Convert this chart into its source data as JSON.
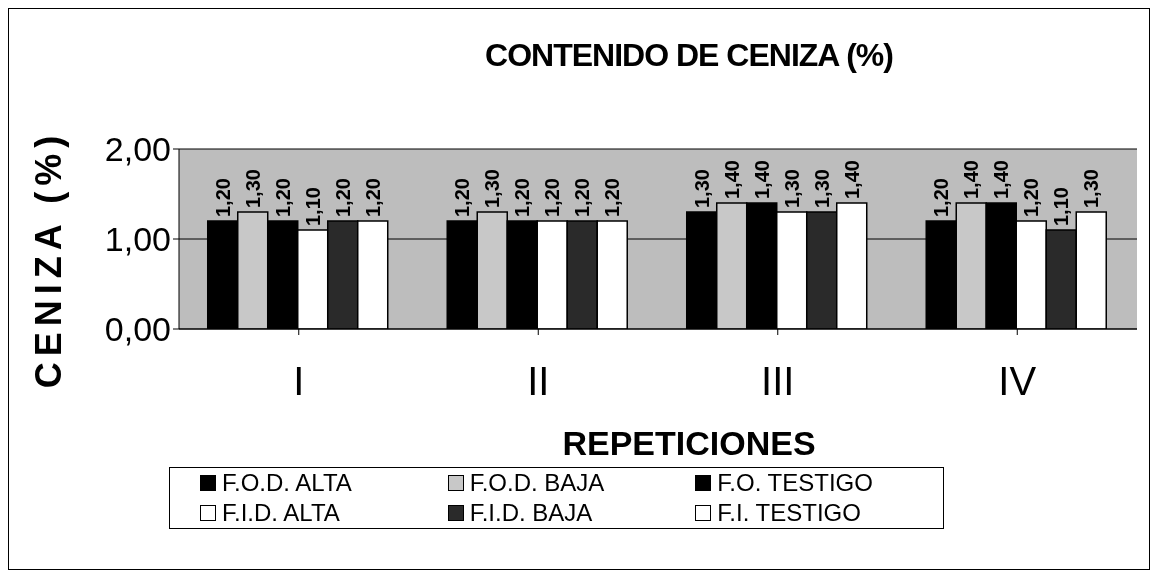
{
  "chart_data": {
    "type": "bar",
    "title": "CONTENIDO DE CENIZA (%)",
    "xlabel": "REPETICIONES",
    "ylabel": "CENIZA (%)",
    "categories": [
      "I",
      "II",
      "III",
      "IV"
    ],
    "series": [
      {
        "name": "F.O.D. ALTA",
        "color": "#000000",
        "values": [
          1.2,
          1.2,
          1.3,
          1.2
        ],
        "value_labels": [
          "1,20",
          "1,20",
          "1,30",
          "1,20"
        ]
      },
      {
        "name": "F.O.D. BAJA",
        "color": "#c8c8c8",
        "values": [
          1.3,
          1.3,
          1.4,
          1.4
        ],
        "value_labels": [
          "1,30",
          "1,30",
          "1,40",
          "1,40"
        ]
      },
      {
        "name": "F.O. TESTIGO",
        "color": "#000000",
        "values": [
          1.2,
          1.2,
          1.4,
          1.4
        ],
        "value_labels": [
          "1,20",
          "1,20",
          "1,40",
          "1,40"
        ]
      },
      {
        "name": "F.I.D. ALTA",
        "color": "#ffffff",
        "values": [
          1.1,
          1.2,
          1.3,
          1.2
        ],
        "value_labels": [
          "1,10",
          "1,20",
          "1,30",
          "1,20"
        ]
      },
      {
        "name": "F.I.D. BAJA",
        "color": "#2a2a2a",
        "values": [
          1.2,
          1.2,
          1.3,
          1.1
        ],
        "value_labels": [
          "1,20",
          "1,20",
          "1,30",
          "1,10"
        ]
      },
      {
        "name": "F.I. TESTIGO",
        "color": "#ffffff",
        "values": [
          1.2,
          1.2,
          1.4,
          1.3
        ],
        "value_labels": [
          "1,20",
          "1,20",
          "1,40",
          "1,30"
        ]
      }
    ],
    "ylim": [
      0,
      2
    ],
    "yticks": [
      {
        "value": 0,
        "label": "0,00"
      },
      {
        "value": 1,
        "label": "1,00"
      },
      {
        "value": 2,
        "label": "2,00"
      }
    ],
    "grid": "y",
    "legend": "bottom"
  }
}
